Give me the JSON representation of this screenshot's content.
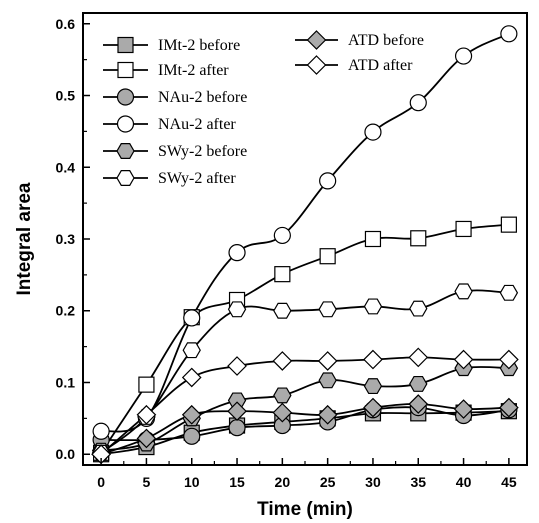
{
  "chart_data": {
    "type": "line",
    "title": "",
    "xlabel": "Time (min)",
    "ylabel": "Integral area",
    "xlim": [
      -2,
      47
    ],
    "ylim": [
      -0.015,
      0.615
    ],
    "xticks": [
      0,
      5,
      10,
      15,
      20,
      25,
      30,
      35,
      40,
      45
    ],
    "yticks": [
      0.0,
      0.1,
      0.2,
      0.3,
      0.4,
      0.5,
      0.6
    ],
    "grid": false,
    "legend_position": "top-left",
    "x": [
      0,
      5,
      10,
      15,
      20,
      25,
      30,
      35,
      40,
      45
    ],
    "series": [
      {
        "name": "IMt-2 before",
        "marker": "square",
        "fill": "#aaaaaa",
        "values": [
          0.0,
          0.01,
          0.03,
          0.04,
          0.045,
          0.05,
          0.057,
          0.057,
          0.058,
          0.06
        ]
      },
      {
        "name": "IMt-2 after",
        "marker": "square",
        "fill": "#ffffff",
        "values": [
          0.002,
          0.097,
          0.191,
          0.215,
          0.251,
          0.276,
          0.3,
          0.301,
          0.314,
          0.32
        ]
      },
      {
        "name": "NAu-2 before",
        "marker": "circle",
        "fill": "#aaaaaa",
        "values": [
          0.02,
          0.02,
          0.025,
          0.037,
          0.04,
          0.045,
          0.062,
          0.065,
          0.054,
          0.062
        ]
      },
      {
        "name": "NAu-2 after",
        "marker": "circle",
        "fill": "#ffffff",
        "values": [
          0.032,
          0.05,
          0.19,
          0.281,
          0.305,
          0.381,
          0.449,
          0.49,
          0.555,
          0.586
        ]
      },
      {
        "name": "SWy-2 before",
        "marker": "hexagon",
        "fill": "#aaaaaa",
        "values": [
          0.005,
          0.015,
          0.05,
          0.075,
          0.082,
          0.103,
          0.095,
          0.098,
          0.12,
          0.12
        ]
      },
      {
        "name": "SWy-2 after",
        "marker": "hexagon",
        "fill": "#ffffff",
        "values": [
          0.002,
          0.052,
          0.145,
          0.202,
          0.2,
          0.202,
          0.206,
          0.203,
          0.227,
          0.225
        ]
      },
      {
        "name": "ATD before",
        "marker": "diamond",
        "fill": "#aaaaaa",
        "values": [
          0.0,
          0.022,
          0.055,
          0.06,
          0.058,
          0.055,
          0.065,
          0.07,
          0.063,
          0.065
        ]
      },
      {
        "name": "ATD after",
        "marker": "diamond",
        "fill": "#ffffff",
        "values": [
          0.0,
          0.055,
          0.107,
          0.123,
          0.13,
          0.13,
          0.132,
          0.135,
          0.132,
          0.132
        ]
      }
    ]
  }
}
